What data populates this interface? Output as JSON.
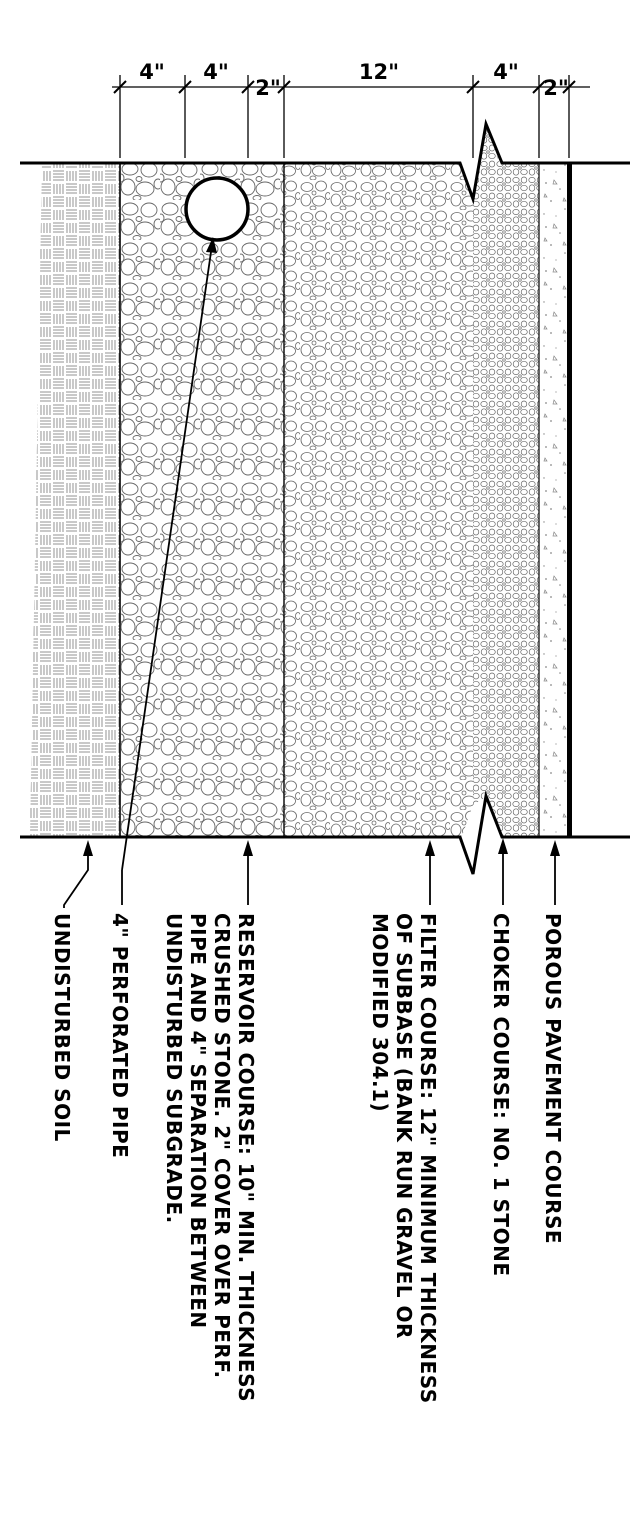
{
  "dimensions": {
    "soil_to_reservoir": "4\"",
    "pipe_zone": "4\"",
    "pipe_cover": "2\"",
    "filter": "12\"",
    "choker": "4\"",
    "pavement": "2\""
  },
  "labels": {
    "porous_pavement": [
      "POROUS PAVEMENT COURSE"
    ],
    "choker": [
      "CHOKER COURSE:  NO. 1 STONE"
    ],
    "filter": [
      "FILTER COURSE:  12\" MINIMUM THICKNESS",
      "OF SUBBASE (BANK RUN GRAVEL OR",
      "MODIFIED 304.1)"
    ],
    "reservoir": [
      "RESERVOIR COURSE:  10\" MIN. THICKNESS",
      "CRUSHED STONE.  2\" COVER OVER PERF.",
      "PIPE AND 4\" SEPARATION BETWEEN",
      "UNDISTURBED SUBGRADE."
    ],
    "pipe": [
      "4\" PERFORATED PIPE"
    ],
    "soil": [
      "UNDISTURBED SOIL"
    ]
  }
}
